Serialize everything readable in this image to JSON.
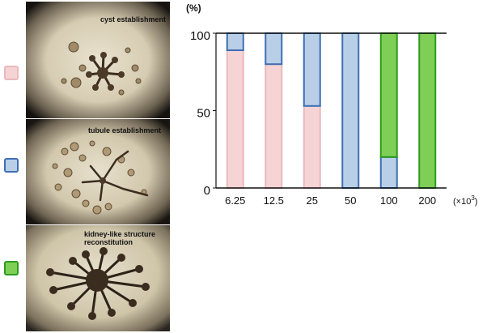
{
  "legend": {
    "cyst_color": "#f6d3d5",
    "cyst_border": "#e9b9bd",
    "tubule_color": "#b9cfe7",
    "tubule_border": "#3e6fb4",
    "kidney_color": "#7fcf56",
    "kidney_border": "#2e9a1e"
  },
  "panels": [
    {
      "label_lines": [
        "cyst establishment"
      ]
    },
    {
      "label_lines": [
        "tubule establishment"
      ]
    },
    {
      "label_lines": [
        "kidney-like structure",
        "reconstitution"
      ]
    }
  ],
  "chart_data": {
    "type": "bar",
    "stacked": true,
    "ylabel": "(%)",
    "xunit": "(×10",
    "xunit_sup": "3",
    "xunit_close": ")",
    "ylim": [
      0,
      100
    ],
    "yticks": [
      "0",
      "50",
      "100"
    ],
    "categories": [
      "6.25",
      "12.5",
      "25",
      "50",
      "100",
      "200"
    ],
    "series": [
      {
        "key": "cyst",
        "values": [
          89,
          80,
          53,
          0,
          0,
          0
        ],
        "fill": "#f6d3d5",
        "stroke": "#e9b9bd"
      },
      {
        "key": "tubule",
        "values": [
          11,
          20,
          47,
          100,
          20,
          0
        ],
        "fill": "#b9cfe7",
        "stroke": "#3e6fb4"
      },
      {
        "key": "kidney",
        "values": [
          0,
          0,
          0,
          0,
          80,
          100
        ],
        "fill": "#7fcf56",
        "stroke": "#2e9a1e"
      }
    ]
  }
}
